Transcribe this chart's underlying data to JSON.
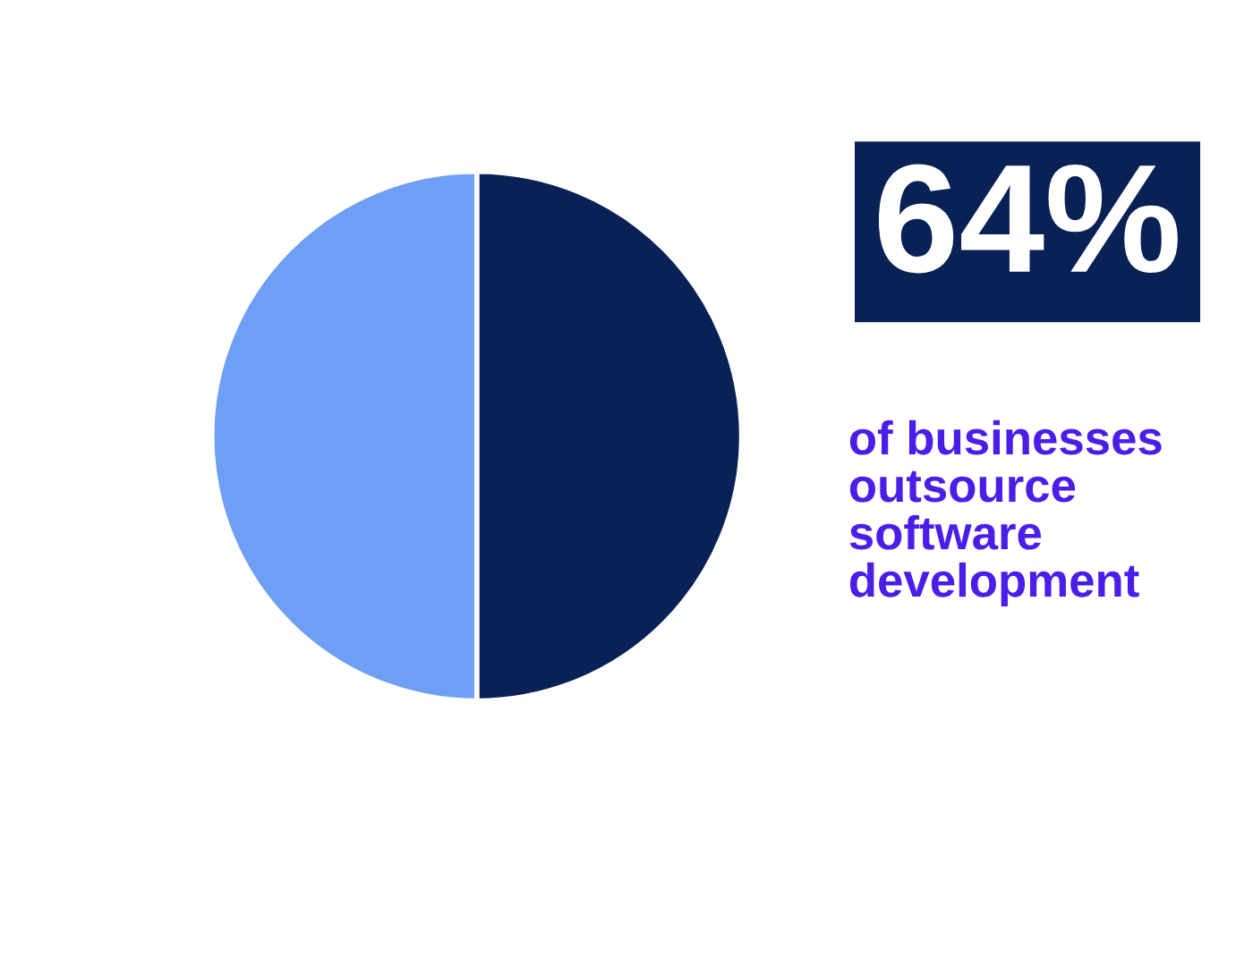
{
  "chart_data": {
    "type": "pie",
    "categories": [
      null,
      null
    ],
    "values": [
      50,
      50
    ],
    "colors": [
      "#0a2156",
      "#6f9ef5"
    ],
    "annotations": [
      "64%",
      "of businesses\noutsource\nsoftware\ndevelopment"
    ]
  }
}
